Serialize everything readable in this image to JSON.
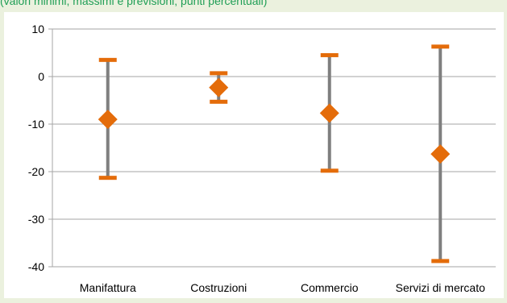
{
  "header": {
    "text": "(valori minimi, massimi e previsioni; punti percentuali)"
  },
  "colors": {
    "background": "#ebf1de",
    "panel": "#ffffff",
    "header_text": "#1f9e55",
    "range_bar": "#7f7f7f",
    "marker": "#e46c0a",
    "gridline": "#a6a6a6"
  },
  "chart_data": {
    "type": "range-point",
    "title": "",
    "xlabel": "",
    "ylabel": "",
    "categories": [
      "Manifattura",
      "Costruzioni",
      "Commercio",
      "Servizi di mercato"
    ],
    "series": [
      {
        "name": "",
        "kind": "max",
        "values": [
          3.5,
          0.7,
          4.5,
          6.3
        ]
      },
      {
        "name": "",
        "kind": "min",
        "values": [
          -21.3,
          -5.3,
          -19.8,
          -38.8
        ]
      },
      {
        "name": "",
        "kind": "point",
        "values": [
          -9.0,
          -2.3,
          -7.7,
          -16.3
        ]
      }
    ],
    "ylim": [
      -40,
      10
    ],
    "yticks": [
      -40,
      -30,
      -20,
      -10,
      0,
      10
    ],
    "ytick_labels": [
      "-40",
      "-30",
      "-20",
      "-10",
      "0",
      "10"
    ],
    "grid": true,
    "legend": "none"
  }
}
